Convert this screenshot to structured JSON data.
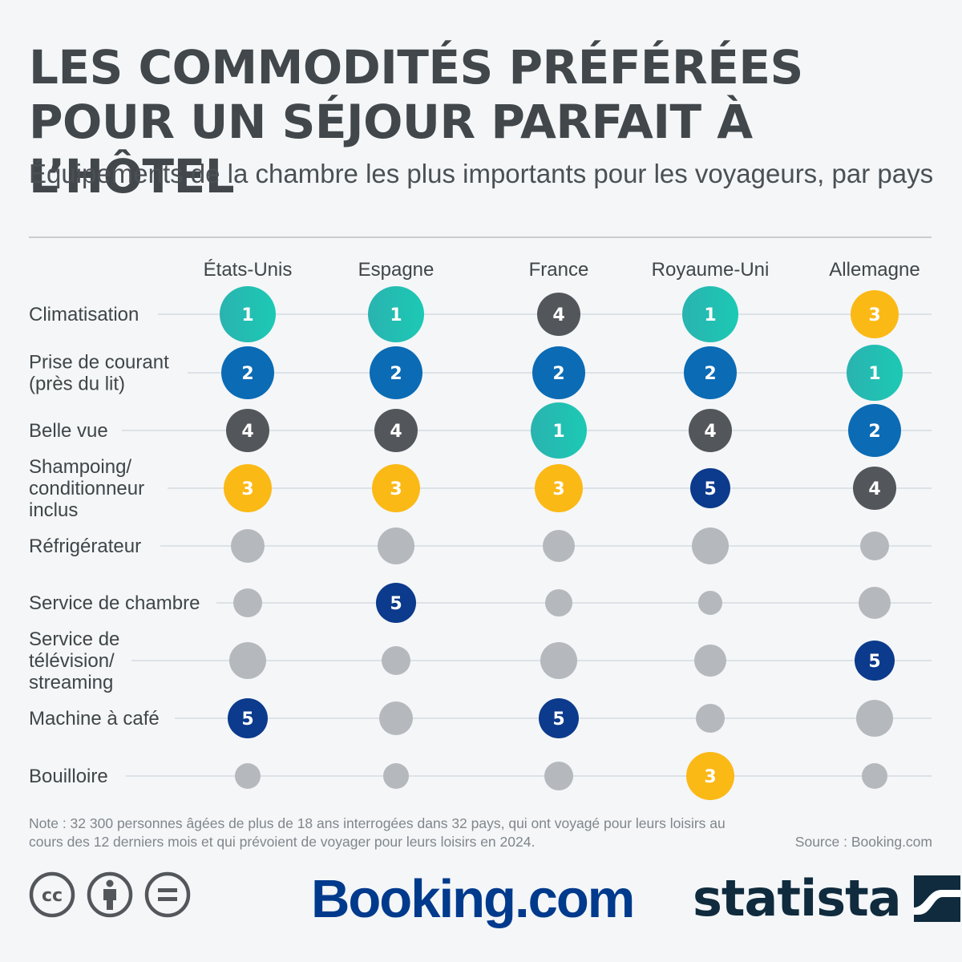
{
  "title": "LES COMMODITÉS PRÉFÉRÉES POUR UN SÉJOUR PARFAIT À L’HÔTEL",
  "subtitle": "Équipements de la chambre les plus importants pour les voyageurs, par pays",
  "note": "Note : 32 300 personnes âgées de plus de 18 ans interrogées dans 32 pays, qui ont voyagé pour leurs loisirs au cours des 12 derniers mois et qui prévoient de voyager pour leurs loisirs en 2024.",
  "source": "Source : Booking.com",
  "logos": {
    "booking": "Booking.com",
    "statista": "statista"
  },
  "license_icons": [
    "cc-icon",
    "attribution-icon",
    "no-derivatives-icon"
  ],
  "colors": {
    "rank1": "#1cc9b4",
    "rank2": "#0b6bb5",
    "rank3": "#fbb916",
    "rank4": "#53575b",
    "rank5": "#0c3a8c",
    "unranked": "#b5b8bc",
    "row_line": "#dde2e7"
  },
  "chart_data": {
    "type": "table",
    "columns": [
      "États-Unis",
      "Espagne",
      "France",
      "Royaume-Uni",
      "Allemagne"
    ],
    "rows": [
      {
        "label": "Climatisation",
        "ranks": [
          1,
          1,
          4,
          1,
          3
        ]
      },
      {
        "label": "Prise de courant\n(près du lit)",
        "ranks": [
          2,
          2,
          2,
          2,
          1
        ]
      },
      {
        "label": "Belle vue",
        "ranks": [
          4,
          4,
          1,
          4,
          2
        ]
      },
      {
        "label": "Shampoing/\nconditionneur\ninclus",
        "ranks": [
          3,
          3,
          3,
          5,
          4
        ]
      },
      {
        "label": "Réfrigérateur",
        "ranks": [
          null,
          null,
          null,
          null,
          null
        ]
      },
      {
        "label": "Service de chambre",
        "ranks": [
          null,
          5,
          null,
          null,
          null
        ]
      },
      {
        "label": "Service de\ntélévision/\nstreaming",
        "ranks": [
          null,
          null,
          null,
          null,
          5
        ]
      },
      {
        "label": "Machine à café",
        "ranks": [
          5,
          null,
          5,
          null,
          null
        ]
      },
      {
        "label": "Bouilloire",
        "ranks": [
          null,
          null,
          null,
          3,
          null
        ]
      }
    ]
  }
}
